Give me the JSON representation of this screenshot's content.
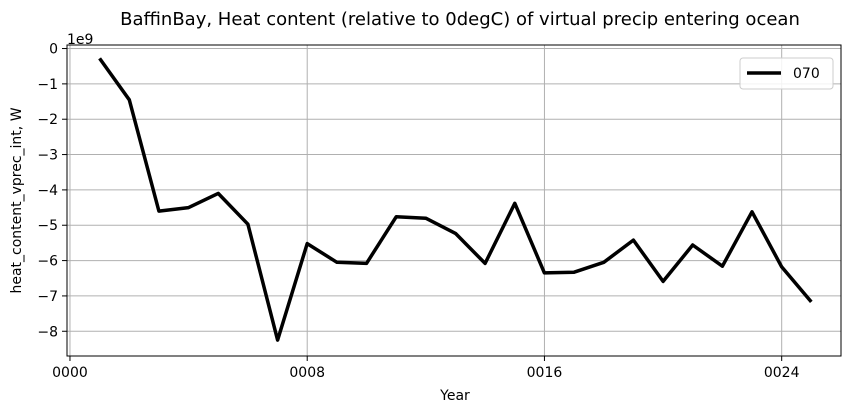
{
  "chart_data": {
    "type": "line",
    "title": "BaffinBay, Heat content (relative to 0degC) of virtual precip entering ocean",
    "xlabel": "Year",
    "ylabel": "heat_content_vprec_int, W",
    "y_offset_label": "1e9",
    "xlim": [
      -0.1,
      26.0
    ],
    "ylim": [
      -8.7,
      0.1
    ],
    "x_ticks": [
      0,
      8,
      16,
      24
    ],
    "x_tick_labels": [
      "0000",
      "0008",
      "0016",
      "0024"
    ],
    "y_ticks": [
      0,
      -1,
      -2,
      -3,
      -4,
      -5,
      -6,
      -7,
      -8
    ],
    "y_tick_labels": [
      "0",
      "−1",
      "−2",
      "−3",
      "−4",
      "−5",
      "−6",
      "−7",
      "−8"
    ],
    "grid": true,
    "legend_position": "upper right",
    "series": [
      {
        "name": "070",
        "color": "#000000",
        "x": [
          1,
          2,
          3,
          4,
          5,
          6,
          7,
          8,
          9,
          10,
          11,
          12,
          13,
          14,
          15,
          16,
          17,
          18,
          19,
          20,
          21,
          22,
          23,
          24,
          25
        ],
        "values": [
          -0.28,
          -1.45,
          -4.6,
          -4.5,
          -4.1,
          -4.97,
          -8.25,
          -5.52,
          -6.05,
          -6.08,
          -4.76,
          -4.8,
          -5.23,
          -6.08,
          -4.38,
          -6.35,
          -6.33,
          -6.05,
          -5.42,
          -6.59,
          -5.56,
          -6.16,
          -4.62,
          -6.18,
          -7.17
        ]
      }
    ]
  }
}
